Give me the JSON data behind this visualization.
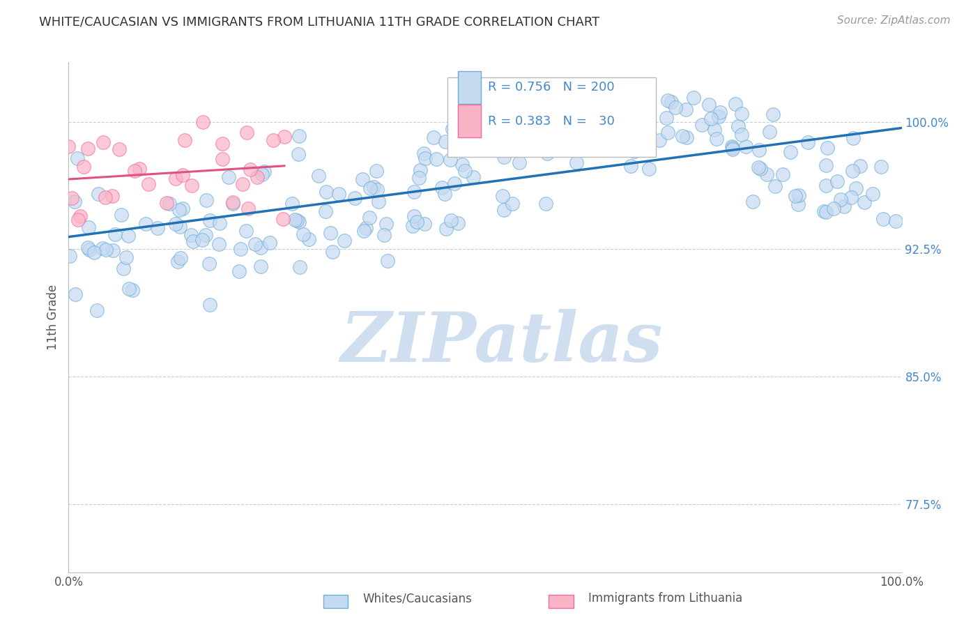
{
  "title": "WHITE/CAUCASIAN VS IMMIGRANTS FROM LITHUANIA 11TH GRADE CORRELATION CHART",
  "source": "Source: ZipAtlas.com",
  "ylabel": "11th Grade",
  "xmin": 0.0,
  "xmax": 1.0,
  "ymin": 0.735,
  "ymax": 1.035,
  "yticks": [
    0.775,
    0.85,
    0.925,
    1.0
  ],
  "ytick_labels": [
    "77.5%",
    "85.0%",
    "92.5%",
    "100.0%"
  ],
  "blue_R": 0.756,
  "blue_N": 200,
  "pink_R": 0.383,
  "pink_N": 30,
  "blue_label": "Whites/Caucasians",
  "pink_label": "Immigrants from Lithuania",
  "blue_fill": "#c5d9f1",
  "blue_edge": "#6baed6",
  "pink_fill": "#fbb4c6",
  "pink_edge": "#f768a1",
  "blue_line": "#2171b5",
  "pink_line": "#e05080",
  "watermark_color": "#d0dff0",
  "grid_color": "#cccccc",
  "title_color": "#333333",
  "right_tick_color": "#4488cc",
  "seed": 7
}
